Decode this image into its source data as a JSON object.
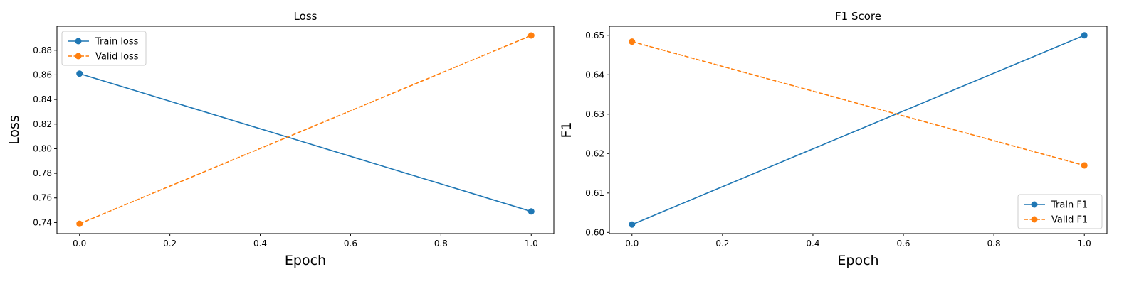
{
  "chart_data": [
    {
      "type": "line",
      "title": "Loss",
      "xlabel": "Epoch",
      "ylabel": "Loss",
      "xlim": [
        -0.05,
        1.05
      ],
      "ylim": [
        0.731,
        0.8995
      ],
      "xticks": [
        "0.0",
        "0.2",
        "0.4",
        "0.6",
        "0.8",
        "1.0"
      ],
      "yticks": [
        "0.74",
        "0.76",
        "0.78",
        "0.80",
        "0.82",
        "0.84",
        "0.86",
        "0.88"
      ],
      "legend_position": "upper-left",
      "grid": false,
      "series": [
        {
          "name": "Train loss",
          "x": [
            0,
            1
          ],
          "y": [
            0.861,
            0.749
          ],
          "color": "#1f77b4",
          "style": "solid",
          "marker": "circle"
        },
        {
          "name": "Valid loss",
          "x": [
            0,
            1
          ],
          "y": [
            0.739,
            0.892
          ],
          "color": "#ff7f0e",
          "style": "dashed",
          "marker": "circle"
        }
      ]
    },
    {
      "type": "line",
      "title": "F1 Score",
      "xlabel": "Epoch",
      "ylabel": "F1",
      "xlim": [
        -0.05,
        1.05
      ],
      "ylim": [
        0.5997,
        0.6523
      ],
      "xticks": [
        "0.0",
        "0.2",
        "0.4",
        "0.6",
        "0.8",
        "1.0"
      ],
      "yticks": [
        "0.60",
        "0.61",
        "0.62",
        "0.63",
        "0.64",
        "0.65"
      ],
      "legend_position": "lower-right",
      "grid": false,
      "series": [
        {
          "name": "Train F1",
          "x": [
            0,
            1
          ],
          "y": [
            0.602,
            0.65
          ],
          "color": "#1f77b4",
          "style": "solid",
          "marker": "circle"
        },
        {
          "name": "Valid F1",
          "x": [
            0,
            1
          ],
          "y": [
            0.6484,
            0.617
          ],
          "color": "#ff7f0e",
          "style": "dashed",
          "marker": "circle"
        }
      ]
    }
  ]
}
